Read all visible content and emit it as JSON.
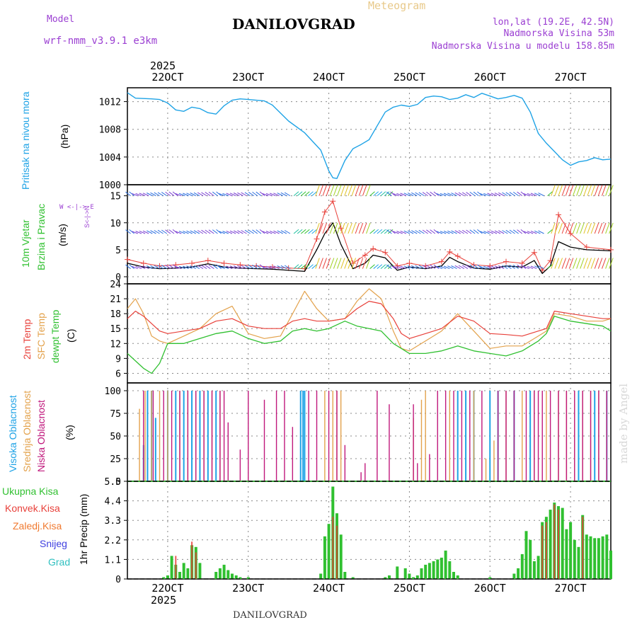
{
  "header": {
    "model_label": "Model",
    "model_name": "wrf-nmm_v3.9.1 e3km",
    "title": "DANILOVGRAD",
    "meteogram_label": "Meteogram",
    "location": "lon,lat (19.2E, 42.5N)",
    "altitude": "Nadmorska Visina 53m",
    "model_altitude": "Nadmorska Visina u modelu 158.85m",
    "footer_title": "DANILOVGRAD",
    "signature": "made by Angel"
  },
  "labels": {
    "year_top": "2025",
    "year_bottom": "2025",
    "pressure_title": "Pritisak na nivou mora",
    "pressure_unit": "(hPa)",
    "wind_title1": "10m Vjetar",
    "wind_title2": "Brzina i Pravac",
    "wind_unit": "(m/s)",
    "wind_compass": "W <-|-> E",
    "wind_compass2": "S<-|->N",
    "temp_t2": "2m Temp",
    "temp_sfc": "SFC Temp",
    "temp_dew": "dewpt Temp",
    "temp_unit": "(C)",
    "cloud_high": "Visoka Oblacnost",
    "cloud_mid": "Srednja Oblacnost",
    "cloud_low": "Niska Oblacnost",
    "cloud_unit": "(%)",
    "precip_unit": "1hr Precip (mm)",
    "precip_legend": [
      "Ukupna Kisa",
      "Konvek.Kisa",
      "Zaledj.Kisa",
      "Snijeg",
      "Grad"
    ]
  },
  "colors": {
    "pressure": "#1fa3e6",
    "t2": "#e8403a",
    "sfc": "#e3a24c",
    "dew": "#30c030",
    "cloud_high": "#1fa3e6",
    "cloud_mid": "#e3a24c",
    "cloud_low": "#c0187c",
    "precip_total": "#30c030",
    "precip_conv": "#e8403a",
    "precip_frz": "#f07a30",
    "precip_snow": "#4040e0",
    "precip_hail": "#30c0c0",
    "wind_gust": "#e8403a"
  },
  "chart_data": {
    "type": "line",
    "time_axis": {
      "start_day": 21.5,
      "end_day": 27.5,
      "ticks": [
        22,
        23,
        24,
        25,
        26,
        27
      ],
      "tick_labels": [
        "22OCT",
        "23OCT",
        "24OCT",
        "25OCT",
        "26OCT",
        "27OCT"
      ]
    },
    "pressure": {
      "ylabel": "(hPa)",
      "ylim": [
        1000,
        1014
      ],
      "yticks": [
        1000,
        1004,
        1008,
        1012
      ],
      "series": [
        {
          "name": "Pritisak",
          "x": [
            21.5,
            21.6,
            21.8,
            21.9,
            22.0,
            22.1,
            22.2,
            22.3,
            22.4,
            22.5,
            22.6,
            22.7,
            22.8,
            22.9,
            23.0,
            23.1,
            23.2,
            23.3,
            23.5,
            23.7,
            23.9,
            24.0,
            24.05,
            24.1,
            24.2,
            24.3,
            24.4,
            24.5,
            24.6,
            24.7,
            24.8,
            24.9,
            25.0,
            25.1,
            25.2,
            25.3,
            25.4,
            25.5,
            25.6,
            25.7,
            25.8,
            25.9,
            26.0,
            26.1,
            26.2,
            26.3,
            26.4,
            26.5,
            26.6,
            26.7,
            26.8,
            26.9,
            27.0,
            27.1,
            27.2,
            27.3,
            27.4,
            27.5
          ],
          "values": [
            1013.3,
            1012.5,
            1012.4,
            1012.3,
            1011.8,
            1010.8,
            1010.6,
            1011.2,
            1011.0,
            1010.4,
            1010.2,
            1011.4,
            1012.2,
            1012.4,
            1012.3,
            1012.2,
            1012.1,
            1011.5,
            1009.2,
            1007.5,
            1005.0,
            1002.0,
            1001.0,
            1000.9,
            1003.5,
            1005.2,
            1005.8,
            1006.5,
            1008.5,
            1010.5,
            1011.2,
            1011.5,
            1011.3,
            1011.6,
            1012.6,
            1012.8,
            1012.7,
            1012.3,
            1012.5,
            1013.0,
            1012.6,
            1013.2,
            1012.8,
            1012.4,
            1012.6,
            1012.9,
            1012.5,
            1010.5,
            1007.4,
            1006.0,
            1004.8,
            1003.6,
            1002.8,
            1003.3,
            1003.5,
            1003.9,
            1003.6,
            1003.7
          ]
        }
      ]
    },
    "wind": {
      "ylabel": "(m/s)",
      "ylim": [
        0,
        16
      ],
      "yticks": [
        0,
        5,
        10,
        15
      ],
      "series": [
        {
          "name": "10m wind speed",
          "x": [
            21.5,
            21.7,
            21.9,
            22.1,
            22.3,
            22.5,
            22.7,
            22.9,
            23.1,
            23.3,
            23.5,
            23.7,
            23.85,
            23.95,
            24.05,
            24.15,
            24.3,
            24.45,
            24.55,
            24.7,
            24.85,
            25.0,
            25.2,
            25.4,
            25.5,
            25.6,
            25.8,
            26.0,
            26.2,
            26.4,
            26.55,
            26.65,
            26.75,
            26.85,
            27.0,
            27.2,
            27.5
          ],
          "values": [
            2.5,
            1.8,
            1.5,
            1.6,
            1.8,
            2.4,
            1.8,
            1.6,
            1.5,
            1.4,
            1.2,
            1.0,
            5.0,
            8.0,
            10.0,
            6.0,
            1.5,
            2.5,
            4.0,
            3.5,
            1.2,
            1.8,
            1.5,
            2.0,
            3.6,
            2.8,
            1.6,
            1.4,
            2.0,
            1.8,
            3.0,
            0.6,
            2.0,
            6.5,
            5.5,
            5.0,
            4.8
          ]
        },
        {
          "name": "gust",
          "x": [
            21.5,
            21.7,
            21.9,
            22.1,
            22.3,
            22.5,
            22.7,
            22.9,
            23.1,
            23.3,
            23.5,
            23.7,
            23.85,
            23.95,
            24.05,
            24.15,
            24.3,
            24.45,
            24.55,
            24.7,
            24.85,
            25.0,
            25.2,
            25.4,
            25.5,
            25.6,
            25.8,
            26.0,
            26.2,
            26.4,
            26.55,
            26.65,
            26.75,
            26.85,
            27.0,
            27.2,
            27.5
          ],
          "values": [
            3.2,
            2.5,
            2.0,
            2.2,
            2.5,
            3.0,
            2.5,
            2.2,
            2.0,
            1.8,
            1.6,
            1.5,
            7.0,
            12.0,
            14.0,
            9.0,
            2.5,
            4.0,
            5.2,
            4.5,
            2.0,
            2.5,
            2.0,
            2.8,
            4.6,
            3.8,
            2.2,
            2.0,
            2.8,
            2.5,
            4.5,
            1.2,
            3.0,
            11.5,
            8.0,
            5.5,
            5.0
          ]
        }
      ]
    },
    "temperature": {
      "ylabel": "(C)",
      "ylim": [
        4.5,
        24
      ],
      "yticks": [
        6,
        9,
        12,
        15,
        18,
        21,
        24
      ],
      "series": [
        {
          "name": "2m Temp",
          "x": [
            21.5,
            21.6,
            21.7,
            21.8,
            21.9,
            22.0,
            22.2,
            22.4,
            22.6,
            22.8,
            23.0,
            23.2,
            23.4,
            23.55,
            23.7,
            23.85,
            24.0,
            24.2,
            24.35,
            24.5,
            24.65,
            24.8,
            24.9,
            25.0,
            25.2,
            25.4,
            25.6,
            25.8,
            26.0,
            26.2,
            26.4,
            26.6,
            26.7,
            26.8,
            27.0,
            27.2,
            27.4,
            27.5
          ],
          "values": [
            17.0,
            18.5,
            17.5,
            16.0,
            14.5,
            14.0,
            14.5,
            15.0,
            16.5,
            17.0,
            15.5,
            15.0,
            15.0,
            16.5,
            17.0,
            16.5,
            16.5,
            17.0,
            19.0,
            20.5,
            20.0,
            17.0,
            14.0,
            13.0,
            14.0,
            15.0,
            17.5,
            16.5,
            14.0,
            13.8,
            13.5,
            14.5,
            15.0,
            18.5,
            18.0,
            17.5,
            17.0,
            17.0
          ]
        },
        {
          "name": "SFC Temp",
          "x": [
            21.5,
            21.6,
            21.7,
            21.8,
            21.9,
            22.0,
            22.2,
            22.4,
            22.6,
            22.8,
            23.0,
            23.2,
            23.4,
            23.55,
            23.7,
            23.85,
            24.0,
            24.2,
            24.35,
            24.5,
            24.65,
            24.8,
            24.9,
            25.0,
            25.2,
            25.4,
            25.6,
            25.8,
            26.0,
            26.2,
            26.4,
            26.6,
            26.7,
            26.8,
            27.0,
            27.2,
            27.4,
            27.5
          ],
          "values": [
            19.0,
            21.0,
            18.0,
            13.5,
            12.5,
            12.0,
            13.5,
            15.0,
            18.0,
            19.5,
            14.0,
            13.0,
            13.5,
            18.0,
            22.5,
            19.0,
            16.5,
            17.0,
            20.5,
            23.0,
            21.0,
            14.5,
            11.0,
            10.5,
            12.5,
            14.5,
            18.0,
            14.5,
            11.0,
            11.5,
            11.5,
            13.5,
            14.5,
            18.0,
            17.5,
            16.5,
            16.5,
            17.0
          ]
        },
        {
          "name": "dewpt Temp",
          "x": [
            21.5,
            21.6,
            21.7,
            21.8,
            21.9,
            22.0,
            22.2,
            22.4,
            22.6,
            22.8,
            23.0,
            23.2,
            23.4,
            23.55,
            23.7,
            23.85,
            24.0,
            24.2,
            24.35,
            24.5,
            24.65,
            24.8,
            24.9,
            25.0,
            25.2,
            25.4,
            25.6,
            25.8,
            26.0,
            26.2,
            26.4,
            26.6,
            26.7,
            26.8,
            27.0,
            27.2,
            27.4,
            27.5
          ],
          "values": [
            10.0,
            8.5,
            7.0,
            6.0,
            8.0,
            12.0,
            12.0,
            13.0,
            14.0,
            14.5,
            13.0,
            12.0,
            12.5,
            14.5,
            15.0,
            14.5,
            15.0,
            16.5,
            15.5,
            15.0,
            14.5,
            12.0,
            11.0,
            10.0,
            10.0,
            10.5,
            11.5,
            10.5,
            10.0,
            9.5,
            10.5,
            12.5,
            14.0,
            17.5,
            16.5,
            16.0,
            15.5,
            14.5
          ]
        }
      ]
    },
    "clouds": {
      "ylabel": "(%)",
      "ylim": [
        0,
        100
      ],
      "yticks": [
        0,
        25,
        50,
        75,
        100
      ],
      "series": [
        {
          "name": "Visoka Oblacnost",
          "x": [
            21.7,
            21.75,
            21.8,
            21.85,
            22.0,
            22.1,
            22.2,
            22.3,
            22.4,
            22.5,
            22.6,
            23.65,
            23.68,
            23.7,
            25.6,
            25.7,
            25.8,
            26.0,
            26.1,
            26.3,
            26.5,
            27.1,
            27.3,
            27.45
          ],
          "values": [
            40,
            100,
            100,
            70,
            100,
            100,
            100,
            100,
            100,
            100,
            100,
            100,
            100,
            100,
            100,
            100,
            100,
            100,
            100,
            100,
            100,
            100,
            100,
            100
          ]
        },
        {
          "name": "Srednja Oblacnost",
          "x": [
            21.65,
            21.72,
            21.8,
            21.9,
            22.0,
            22.15,
            22.25,
            22.35,
            22.45,
            22.55,
            22.65,
            23.95,
            24.05,
            24.1,
            24.15,
            25.05,
            25.15,
            25.2,
            25.5,
            25.8,
            25.95,
            26.05,
            26.2,
            26.4,
            26.55,
            26.7,
            26.85,
            26.95,
            27.05,
            27.15,
            27.25,
            27.35,
            27.45
          ],
          "values": [
            80,
            100,
            100,
            100,
            100,
            100,
            100,
            100,
            100,
            100,
            100,
            100,
            100,
            100,
            100,
            70,
            90,
            100,
            100,
            100,
            25,
            45,
            100,
            100,
            100,
            100,
            100,
            100,
            100,
            100,
            100,
            100,
            100
          ]
        },
        {
          "name": "Niska Oblacnost",
          "x": [
            21.7,
            21.82,
            21.95,
            22.05,
            22.15,
            22.25,
            22.35,
            22.45,
            22.55,
            22.65,
            22.7,
            22.75,
            22.9,
            23.0,
            23.2,
            23.35,
            23.45,
            23.55,
            23.75,
            23.85,
            24.0,
            24.1,
            24.2,
            24.4,
            24.45,
            24.6,
            24.75,
            25.05,
            25.1,
            25.25,
            25.35,
            25.45,
            25.55,
            25.65,
            25.75,
            25.9,
            26.1,
            26.2,
            26.3,
            26.45,
            26.55,
            26.6,
            26.65,
            26.75,
            26.85,
            26.95,
            27.05,
            27.15,
            27.25,
            27.35,
            27.45
          ],
          "values": [
            100,
            100,
            100,
            100,
            100,
            100,
            100,
            100,
            100,
            100,
            100,
            65,
            35,
            100,
            90,
            100,
            100,
            60,
            100,
            100,
            100,
            100,
            40,
            10,
            20,
            100,
            85,
            85,
            20,
            30,
            100,
            100,
            100,
            100,
            100,
            100,
            100,
            100,
            100,
            100,
            100,
            100,
            100,
            100,
            100,
            100,
            100,
            100,
            100,
            100,
            100
          ]
        }
      ]
    },
    "precip": {
      "ylabel": "1hr Precip (mm)",
      "ylim": [
        0,
        5.5
      ],
      "yticks": [
        0,
        1.1,
        2.2,
        3.3,
        4.4,
        5.5
      ],
      "series": [
        {
          "name": "Ukupna Kisa",
          "x": [
            21.95,
            22.0,
            22.05,
            22.1,
            22.15,
            22.2,
            22.25,
            22.3,
            22.35,
            22.4,
            22.6,
            22.65,
            22.7,
            22.75,
            22.8,
            22.85,
            22.9,
            23.0,
            23.9,
            23.95,
            24.0,
            24.05,
            24.1,
            24.15,
            24.2,
            24.3,
            24.7,
            24.75,
            24.85,
            24.95,
            25.0,
            25.05,
            25.1,
            25.15,
            25.2,
            25.25,
            25.3,
            25.35,
            25.4,
            25.45,
            25.5,
            25.55,
            25.6,
            26.0,
            26.3,
            26.35,
            26.4,
            26.45,
            26.5,
            26.55,
            26.6,
            26.65,
            26.7,
            26.75,
            26.8,
            26.85,
            26.9,
            26.95,
            27.0,
            27.05,
            27.1,
            27.15,
            27.2,
            27.25,
            27.3,
            27.35,
            27.4,
            27.45,
            27.5
          ],
          "values": [
            0.1,
            0.2,
            1.3,
            0.8,
            0.4,
            0.9,
            0.6,
            1.9,
            1.8,
            0.9,
            0.4,
            0.6,
            0.8,
            0.5,
            0.3,
            0.2,
            0.1,
            0.1,
            0.3,
            2.4,
            3.1,
            5.2,
            3.7,
            2.5,
            0.4,
            0.1,
            0.1,
            0.2,
            0.7,
            0.6,
            0.3,
            0.1,
            0.2,
            0.6,
            0.8,
            0.9,
            1.0,
            1.1,
            1.2,
            1.6,
            1.0,
            0.4,
            0.2,
            0.1,
            0.3,
            0.6,
            1.4,
            2.7,
            2.2,
            1.0,
            1.3,
            3.2,
            3.5,
            3.9,
            4.3,
            4.1,
            4.0,
            2.8,
            3.2,
            2.2,
            1.8,
            3.6,
            2.5,
            2.4,
            2.3,
            2.3,
            2.4,
            2.5,
            1.6
          ]
        },
        {
          "name": "Konvek.Kisa",
          "x": [
            22.1,
            22.3,
            22.35,
            24.05,
            24.1,
            26.65,
            26.7,
            26.8,
            26.85,
            27.15
          ],
          "values": [
            1.3,
            2.1,
            1.5,
            3.5,
            3.0,
            3.0,
            3.2,
            4.2,
            3.9,
            3.5
          ]
        }
      ]
    }
  }
}
